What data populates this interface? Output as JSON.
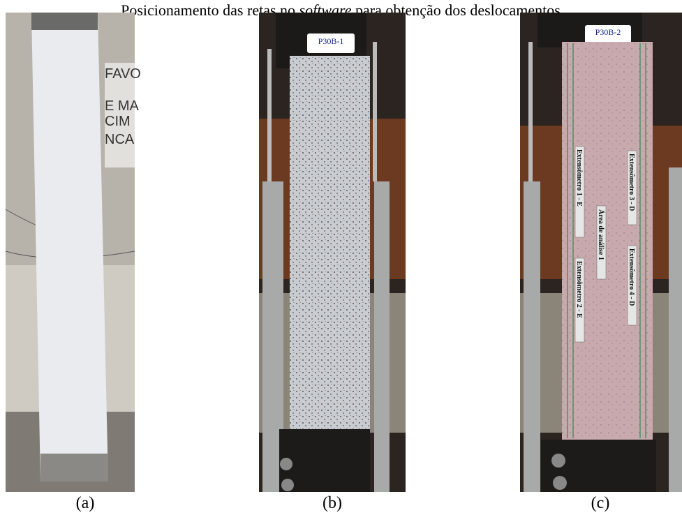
{
  "header": {
    "title_before": "Posicionamento das retas no ",
    "title_italic": "software",
    "title_after": " para obtenção dos deslocamentos"
  },
  "panels": [
    {
      "caption": "(a)",
      "sign": [
        "FAVO",
        "E MA",
        "CIM",
        "NCA"
      ]
    },
    {
      "caption": "(b)",
      "tag": "P30B-1"
    },
    {
      "caption": "(c)",
      "tag": "P30B-2",
      "area": "Área de análise 1",
      "labels": [
        "Extensômetro 1 - E",
        "Extensômetro 2 - E",
        "Extensômetro 3 - D",
        "Extensômetro 4 - D"
      ]
    }
  ]
}
